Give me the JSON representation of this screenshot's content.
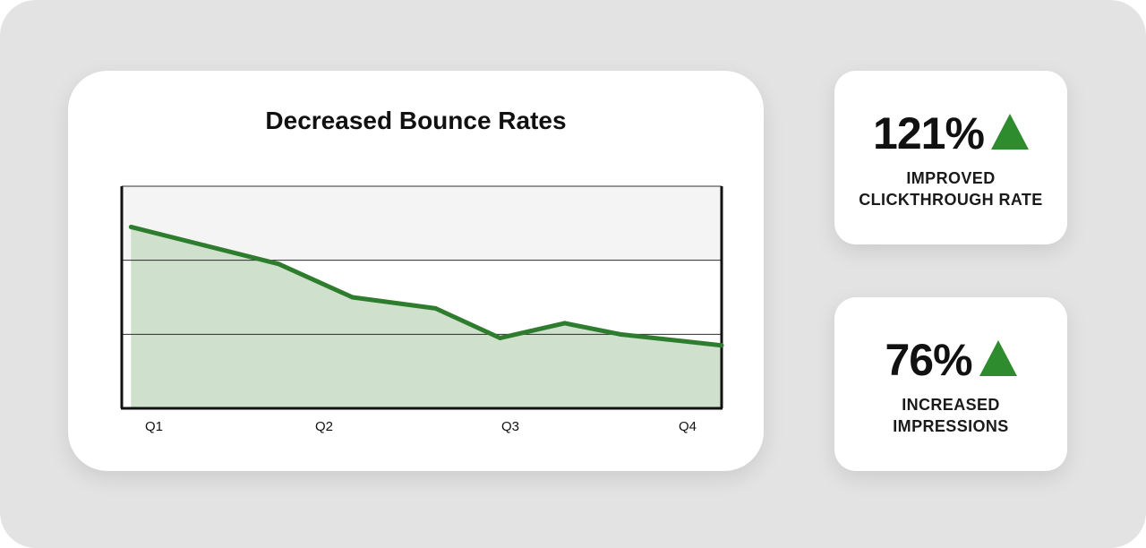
{
  "chart_data": {
    "type": "area",
    "title": "Decreased Bounce Rates",
    "x_tick_labels": [
      "Q1",
      "Q2",
      "Q3",
      "Q4"
    ],
    "x": [
      1.0,
      1.4,
      1.8,
      2.2,
      2.65,
      3.0,
      3.35,
      3.65,
      4.2
    ],
    "values": [
      2.45,
      2.2,
      1.95,
      1.5,
      1.35,
      0.95,
      1.15,
      1.0,
      0.85
    ],
    "xlim": [
      0.95,
      4.2
    ],
    "ylim": [
      0,
      3
    ],
    "grid": true,
    "colors": {
      "line": "#2e7d2e",
      "fill": "#cfe0cc",
      "top_band": "#f4f4f4"
    }
  },
  "stats": [
    {
      "value": "121%",
      "label_lines": [
        "IMPROVED",
        "CLICKTHROUGH RATE"
      ],
      "icon": "up-triangle-icon"
    },
    {
      "value": "76%",
      "label_lines": [
        "INCREASED",
        "IMPRESSIONS"
      ],
      "icon": "up-triangle-icon"
    }
  ],
  "accent_color": "#2e8b2e",
  "background_color": "#e3e3e3"
}
